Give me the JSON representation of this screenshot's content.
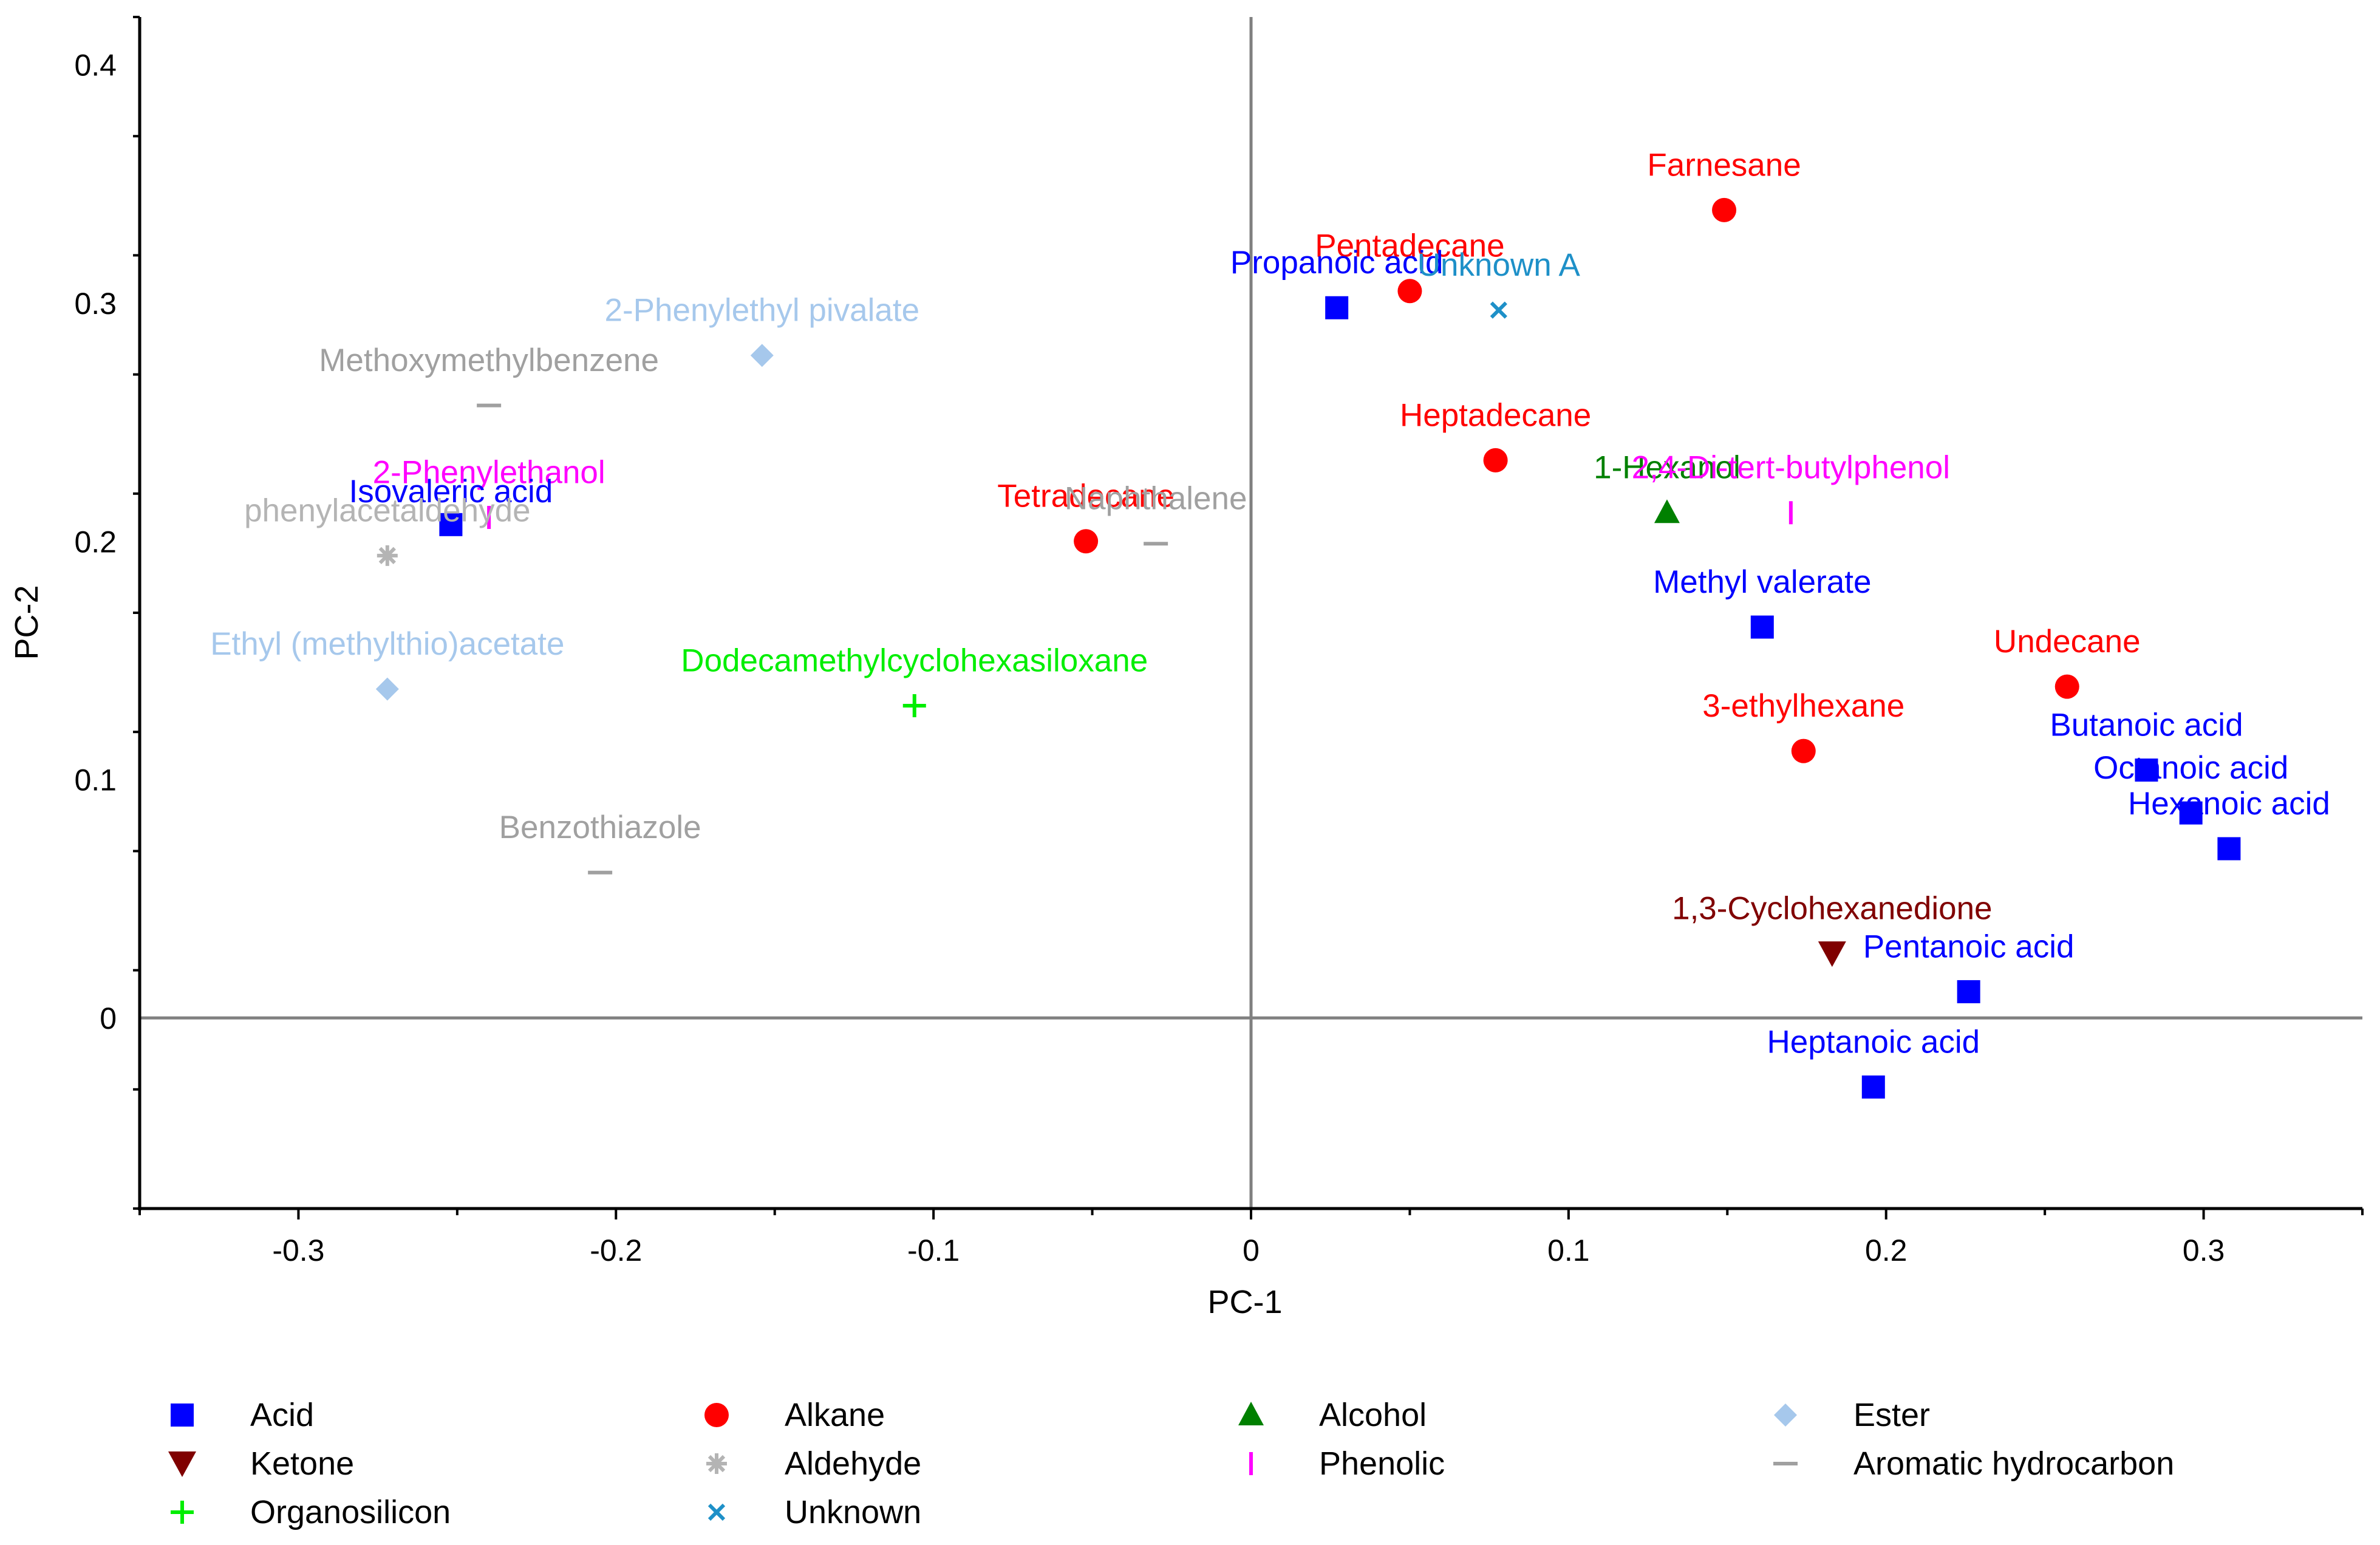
{
  "chart_data": {
    "type": "scatter",
    "xlabel": "PC-1",
    "ylabel": "PC-2",
    "xlim": [
      -0.35,
      0.35
    ],
    "ylim": [
      -0.08,
      0.42
    ],
    "x_ticks": [
      -0.3,
      -0.2,
      -0.1,
      0,
      0.1,
      0.2,
      0.3
    ],
    "x_tick_labels": [
      "-0.3",
      "-0.2",
      "-0.1",
      "0",
      "0.1",
      "0.2",
      "0.3"
    ],
    "y_ticks": [
      0,
      0.1,
      0.2,
      0.3,
      0.4
    ],
    "y_tick_labels": [
      "0",
      "0.1",
      "0.2",
      "0.3",
      "0.4"
    ],
    "grid": false,
    "zero_lines": true,
    "legend_position": "bottom",
    "categories": [
      {
        "key": "acid",
        "name": "Acid",
        "marker": "square",
        "color": "#0000ff"
      },
      {
        "key": "alkane",
        "name": "Alkane",
        "marker": "circle",
        "color": "#ff0000"
      },
      {
        "key": "alcohol",
        "name": "Alcohol",
        "marker": "triangle-up",
        "color": "#008000"
      },
      {
        "key": "ester",
        "name": "Ester",
        "marker": "diamond",
        "color": "#a6c8ec"
      },
      {
        "key": "ketone",
        "name": "Ketone",
        "marker": "triangle-down",
        "color": "#800000"
      },
      {
        "key": "aldehyde",
        "name": "Aldehyde",
        "marker": "asterisk",
        "color": "#b4b4b4"
      },
      {
        "key": "phenolic",
        "name": "Phenolic",
        "marker": "vbar",
        "color": "#ff00ff"
      },
      {
        "key": "aromatic",
        "name": "Aromatic hydrocarbon",
        "marker": "hbar",
        "color": "#a0a0a0"
      },
      {
        "key": "organosilicon",
        "name": "Organosilicon",
        "marker": "plus",
        "color": "#00ee00"
      },
      {
        "key": "unknown",
        "name": "Unknown",
        "marker": "cross",
        "color": "#1e90c8"
      }
    ],
    "points": [
      {
        "label": "Farnesane",
        "category": "alkane",
        "x": 0.149,
        "y": 0.339,
        "label_x": 0.149,
        "label_y": 0.358
      },
      {
        "label": "Pentadecane",
        "category": "alkane",
        "x": 0.05,
        "y": 0.305,
        "label_x": 0.05,
        "label_y": 0.324
      },
      {
        "label": "Propanoic acid",
        "category": "acid",
        "x": 0.027,
        "y": 0.298,
        "label_x": 0.027,
        "label_y": 0.317
      },
      {
        "label": "Unknown A",
        "category": "unknown",
        "x": 0.078,
        "y": 0.297,
        "label_x": 0.078,
        "label_y": 0.316
      },
      {
        "label": "Heptadecane",
        "category": "alkane",
        "x": 0.077,
        "y": 0.234,
        "label_x": 0.077,
        "label_y": 0.253
      },
      {
        "label": "1-Hexanol",
        "category": "alcohol",
        "x": 0.131,
        "y": 0.212,
        "label_x": 0.131,
        "label_y": 0.231
      },
      {
        "label": "2,4-Di-tert-butylphenol",
        "category": "phenolic",
        "x": 0.17,
        "y": 0.212,
        "label_x": 0.17,
        "label_y": 0.231
      },
      {
        "label": "Methyl valerate",
        "category": "acid",
        "x": 0.161,
        "y": 0.164,
        "label_x": 0.161,
        "label_y": 0.183
      },
      {
        "label": "Undecane",
        "category": "alkane",
        "x": 0.257,
        "y": 0.139,
        "label_x": 0.257,
        "label_y": 0.158
      },
      {
        "label": "3-ethylhexane",
        "category": "alkane",
        "x": 0.174,
        "y": 0.112,
        "label_x": 0.174,
        "label_y": 0.131
      },
      {
        "label": "Butanoic acid",
        "category": "acid",
        "x": 0.282,
        "y": 0.104,
        "label_x": 0.282,
        "label_y": 0.123
      },
      {
        "label": "Octanoic acid",
        "category": "acid",
        "x": 0.296,
        "y": 0.086,
        "label_x": 0.296,
        "label_y": 0.105
      },
      {
        "label": "Hexanoic acid",
        "category": "acid",
        "x": 0.308,
        "y": 0.071,
        "label_x": 0.308,
        "label_y": 0.09
      },
      {
        "label": "1,3-Cyclohexanedione",
        "category": "ketone",
        "x": 0.183,
        "y": 0.027,
        "label_x": 0.183,
        "label_y": 0.046
      },
      {
        "label": "Pentanoic acid",
        "category": "acid",
        "x": 0.226,
        "y": 0.011,
        "label_x": 0.226,
        "label_y": 0.03
      },
      {
        "label": "Heptanoic acid",
        "category": "acid",
        "x": 0.196,
        "y": -0.029,
        "label_x": 0.196,
        "label_y": -0.01
      },
      {
        "label": "2-Phenylethyl pivalate",
        "category": "ester",
        "x": -0.154,
        "y": 0.278,
        "label_x": -0.154,
        "label_y": 0.297
      },
      {
        "label": "Methoxymethylbenzene",
        "category": "aromatic",
        "x": -0.24,
        "y": 0.257,
        "label_x": -0.24,
        "label_y": 0.276
      },
      {
        "label": "2-Phenylethanol",
        "category": "phenolic",
        "x": -0.24,
        "y": 0.21,
        "label_x": -0.24,
        "label_y": 0.229
      },
      {
        "label": "Isovaleric acid",
        "category": "acid",
        "x": -0.252,
        "y": 0.207,
        "label_x": -0.252,
        "label_y": 0.221
      },
      {
        "label": "phenylacetaldehyde",
        "category": "aldehyde",
        "x": -0.272,
        "y": 0.194,
        "label_x": -0.272,
        "label_y": 0.213
      },
      {
        "label": "Ethyl (methylthio)acetate",
        "category": "ester",
        "x": -0.272,
        "y": 0.138,
        "label_x": -0.272,
        "label_y": 0.157
      },
      {
        "label": "Tetradecane",
        "category": "alkane",
        "x": -0.052,
        "y": 0.2,
        "label_x": -0.052,
        "label_y": 0.219
      },
      {
        "label": "Naphthalene",
        "category": "aromatic",
        "x": -0.03,
        "y": 0.199,
        "label_x": -0.03,
        "label_y": 0.218
      },
      {
        "label": "Dodecamethylcyclohexasiloxane",
        "category": "organosilicon",
        "x": -0.106,
        "y": 0.131,
        "label_x": -0.106,
        "label_y": 0.15
      },
      {
        "label": "Benzothiazole",
        "category": "aromatic",
        "x": -0.205,
        "y": 0.061,
        "label_x": -0.205,
        "label_y": 0.08
      }
    ],
    "legend": [
      {
        "category": "acid",
        "label": "Acid"
      },
      {
        "category": "alkane",
        "label": "Alkane"
      },
      {
        "category": "alcohol",
        "label": "Alcohol"
      },
      {
        "category": "ester",
        "label": "Ester"
      },
      {
        "category": "ketone",
        "label": "Ketone"
      },
      {
        "category": "aldehyde",
        "label": "Aldehyde"
      },
      {
        "category": "phenolic",
        "label": "Phenolic"
      },
      {
        "category": "aromatic",
        "label": "Aromatic hydrocarbon"
      },
      {
        "category": "organosilicon",
        "label": "Organosilicon"
      },
      {
        "category": "unknown",
        "label": "Unknown"
      }
    ]
  }
}
